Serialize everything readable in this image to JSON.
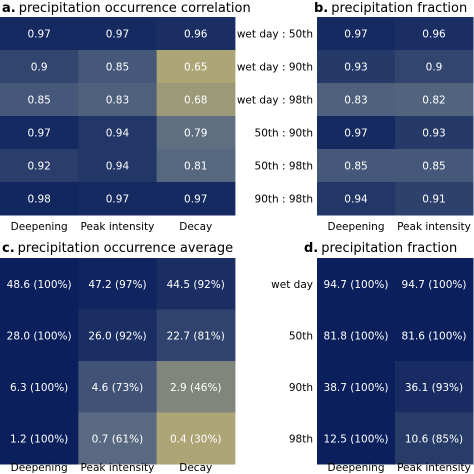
{
  "chart_data": [
    {
      "id": "a",
      "type": "heatmap",
      "title": "precipitation occurrence correlation",
      "letter": "a.",
      "columns": [
        "Deepening",
        "Peak intensity",
        "Decay"
      ],
      "rows": [
        "wet day : 50th",
        "wet day : 90th",
        "wet day : 98th",
        "50th : 90th",
        "50th : 98th",
        "90th : 98th"
      ],
      "values": [
        [
          0.97,
          0.97,
          0.96
        ],
        [
          0.9,
          0.85,
          0.65
        ],
        [
          0.85,
          0.83,
          0.68
        ],
        [
          0.97,
          0.94,
          0.79
        ],
        [
          0.92,
          0.94,
          0.81
        ],
        [
          0.98,
          0.97,
          0.97
        ]
      ],
      "labels": [
        [
          "0.97",
          "0.97",
          "0.96"
        ],
        [
          "0.9",
          "0.85",
          "0.65"
        ],
        [
          "0.85",
          "0.83",
          "0.68"
        ],
        [
          "0.97",
          "0.94",
          "0.79"
        ],
        [
          "0.92",
          "0.94",
          "0.81"
        ],
        [
          "0.98",
          "0.97",
          "0.97"
        ]
      ]
    },
    {
      "id": "b",
      "type": "heatmap",
      "title": "precipitation fraction",
      "letter": "b.",
      "columns": [
        "Deepening",
        "Peak intensity"
      ],
      "rows": [
        "wet day : 50th",
        "wet day : 90th",
        "wet day : 98th",
        "50th : 90th",
        "50th : 98th",
        "90th : 98th"
      ],
      "values": [
        [
          0.97,
          0.96
        ],
        [
          0.93,
          0.9
        ],
        [
          0.83,
          0.82
        ],
        [
          0.97,
          0.93
        ],
        [
          0.85,
          0.85
        ],
        [
          0.94,
          0.91
        ]
      ],
      "labels": [
        [
          "0.97",
          "0.96"
        ],
        [
          "0.93",
          "0.9"
        ],
        [
          "0.83",
          "0.82"
        ],
        [
          "0.97",
          "0.93"
        ],
        [
          "0.85",
          "0.85"
        ],
        [
          "0.94",
          "0.91"
        ]
      ]
    },
    {
      "id": "c",
      "type": "heatmap",
      "title": "precipitation occurrence average",
      "letter": "c.",
      "columns": [
        "Deepening",
        "Peak intensity",
        "Decay"
      ],
      "rows": [
        "wet day",
        "50th",
        "90th",
        "98th"
      ],
      "values": [
        [
          100,
          97,
          92
        ],
        [
          100,
          92,
          81
        ],
        [
          100,
          73,
          46
        ],
        [
          100,
          61,
          30
        ]
      ],
      "labels": [
        [
          "48.6 (100%)",
          "47.2 (97%)",
          "44.5 (92%)"
        ],
        [
          "28.0 (100%)",
          "26.0 (92%)",
          "22.7 (81%)"
        ],
        [
          "6.3 (100%)",
          "4.6 (73%)",
          "2.9 (46%)"
        ],
        [
          "1.2 (100%)",
          "0.7 (61%)",
          "0.4 (30%)"
        ]
      ]
    },
    {
      "id": "d",
      "type": "heatmap",
      "title": "precipitation fraction",
      "letter": "d.",
      "columns": [
        "Deepening",
        "Peak intensity"
      ],
      "rows": [
        "wet day",
        "50th",
        "90th",
        "98th"
      ],
      "values": [
        [
          100,
          100
        ],
        [
          100,
          100
        ],
        [
          100,
          93
        ],
        [
          100,
          85
        ]
      ],
      "labels": [
        [
          "94.7 (100%)",
          "94.7 (100%)"
        ],
        [
          "81.8 (100%)",
          "81.6 (100%)"
        ],
        [
          "38.7 (100%)",
          "36.1 (93%)"
        ],
        [
          "12.5 (100%)",
          "10.6 (85%)"
        ]
      ]
    }
  ],
  "colormap": {
    "high": "#0a1f5c",
    "mid": "#5a6b82",
    "low": "#c8b872"
  }
}
